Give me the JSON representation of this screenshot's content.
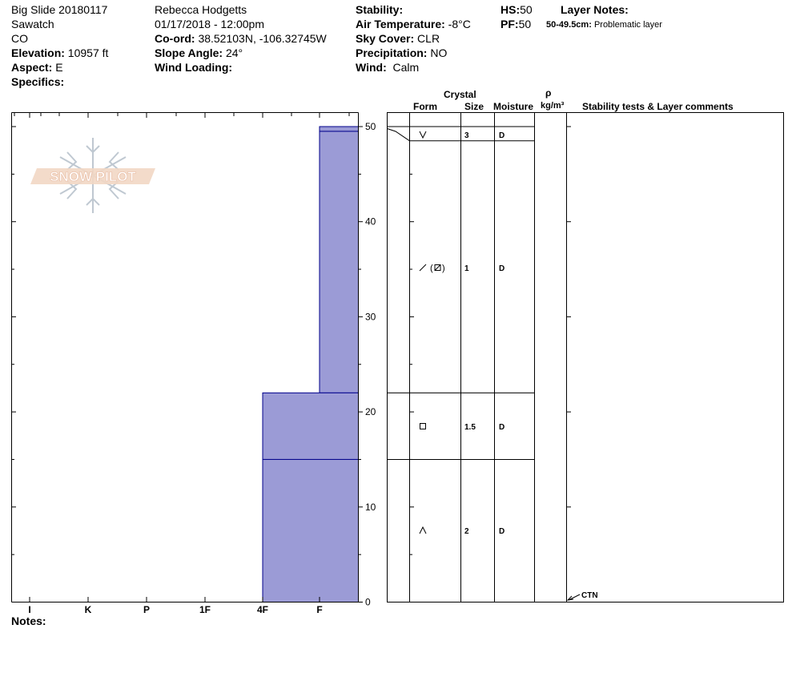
{
  "header": {
    "col1": {
      "site_date": "Big Slide 20180117",
      "range": "Sawatch",
      "state": "CO",
      "elevation_label": "Elevation:",
      "elevation_value": "10957 ft",
      "aspect_label": "Aspect:",
      "aspect_value": "E",
      "specifics_label": "Specifics:"
    },
    "col2": {
      "observer": "Rebecca Hodgetts",
      "datetime": "01/17/2018 - 12:00pm",
      "coord_label": "Co-ord:",
      "coord_value": "38.52103N, -106.32745W",
      "slope_label": "Slope Angle:",
      "slope_value": "24°",
      "wind_loading_label": "Wind Loading:"
    },
    "col3": {
      "stability_label": "Stability:",
      "air_temp_label": "Air Temperature:",
      "air_temp_value": "-8°C",
      "sky_label": "Sky Cover:",
      "sky_value": "CLR",
      "precip_label": "Precipitation:",
      "precip_value": "NO",
      "wind_label": "Wind:",
      "wind_value": "Calm"
    },
    "col4": {
      "hs_label": "HS:",
      "hs_value": "50",
      "pf_label": "PF:",
      "pf_value": "50"
    },
    "layer_notes": {
      "title": "Layer Notes:",
      "range": "50-49.5cm:",
      "text": "Problematic layer"
    }
  },
  "logo": {
    "text": "SNOW PILOT"
  },
  "column_headers": {
    "crystal": "Crystal",
    "form": "Form",
    "size": "Size",
    "moisture": "Moisture",
    "rho": "ρ",
    "density_unit": "kg/m³",
    "stability": "Stability tests & Layer comments"
  },
  "hardness_axis": [
    "I",
    "K",
    "P",
    "1F",
    "4F",
    "F"
  ],
  "depth_axis": [
    "50",
    "40",
    "30",
    "20",
    "10",
    "0"
  ],
  "notes_label": "Notes:",
  "ctn_label": "CTN",
  "fill_color": "#9b9bd6",
  "line_color": "#00008b",
  "chart_data": {
    "type": "snow-profile",
    "y_range_cm": [
      0,
      50
    ],
    "hardness_scale": [
      "I",
      "K",
      "P",
      "1F",
      "4F",
      "F"
    ],
    "layers": [
      {
        "top": 50,
        "bottom": 49.5,
        "hardness": "F"
      },
      {
        "top": 49.5,
        "bottom": 22,
        "hardness": "F"
      },
      {
        "top": 22,
        "bottom": 15,
        "hardness": "4F"
      },
      {
        "top": 15,
        "bottom": 0,
        "hardness": "4F"
      }
    ],
    "grain_layers": [
      {
        "top": 50,
        "bottom": 48.5,
        "form": "surface-hoar-icon",
        "size": "3",
        "moisture": "D"
      },
      {
        "top": 48.5,
        "bottom": 22,
        "form": "decomposing-faceted-icon",
        "size": "1",
        "moisture": "D"
      },
      {
        "top": 22,
        "bottom": 15,
        "form": "faceted-square-icon",
        "size": "1.5",
        "moisture": "D"
      },
      {
        "top": 15,
        "bottom": 0,
        "form": "depth-hoar-icon",
        "size": "2",
        "moisture": "D"
      }
    ]
  }
}
